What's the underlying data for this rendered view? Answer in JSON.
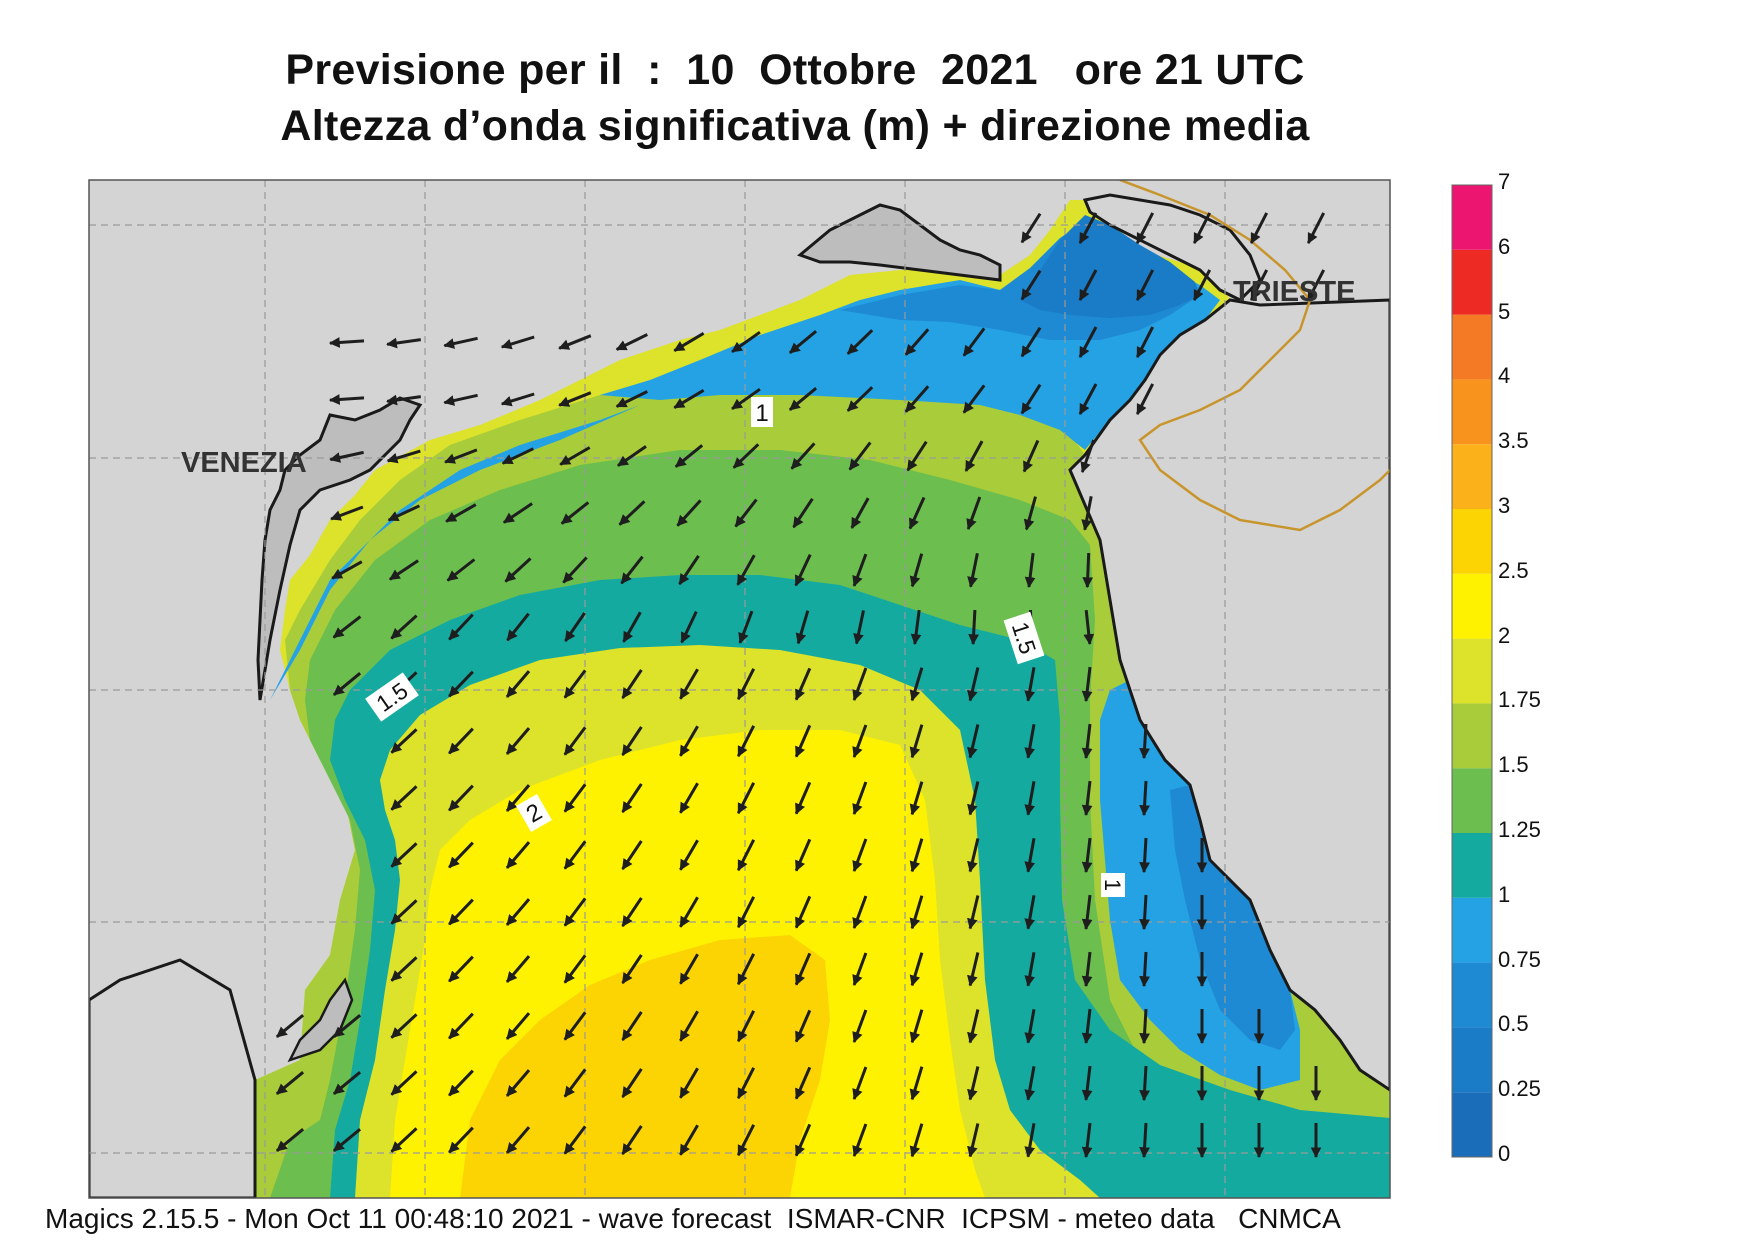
{
  "title": {
    "line1": "Previsione per il  :  10  Ottobre  2021   ore 21 UTC",
    "line2": "Altezza d’onda significativa (m) + direzione media"
  },
  "map": {
    "place_labels": [
      {
        "id": "venezia",
        "text": "VENEZIA"
      },
      {
        "id": "trieste",
        "text": "TRIESTE"
      }
    ],
    "contour_labels": [
      "1",
      "1.5",
      "1.5",
      "2",
      "1"
    ],
    "colors": {
      "land": "#d4d4d4",
      "coastline": "#1a1a1a",
      "border": "#c8952c",
      "grid": "#9a9a9a",
      "arrow": "#1e1e1e"
    }
  },
  "legend": {
    "unit": "m",
    "bands": [
      {
        "from": 0,
        "to": 0.25,
        "color": "#1a6db8"
      },
      {
        "from": 0.25,
        "to": 0.5,
        "color": "#1a7bc6"
      },
      {
        "from": 0.5,
        "to": 0.75,
        "color": "#1f8ad4"
      },
      {
        "from": 0.75,
        "to": 1,
        "color": "#24a2e4"
      },
      {
        "from": 1,
        "to": 1.25,
        "color": "#14aaa0"
      },
      {
        "from": 1.25,
        "to": 1.5,
        "color": "#6cbe4e"
      },
      {
        "from": 1.5,
        "to": 1.75,
        "color": "#a8cc3a"
      },
      {
        "from": 1.75,
        "to": 2,
        "color": "#dde22a"
      },
      {
        "from": 2,
        "to": 2.5,
        "color": "#fff200"
      },
      {
        "from": 2.5,
        "to": 3,
        "color": "#fcd404"
      },
      {
        "from": 3,
        "to": 3.5,
        "color": "#fbb21a"
      },
      {
        "from": 3.5,
        "to": 4,
        "color": "#f8931e"
      },
      {
        "from": 4,
        "to": 5,
        "color": "#f47a26"
      },
      {
        "from": 5,
        "to": 6,
        "color": "#ee2a24"
      },
      {
        "from": 6,
        "to": 7,
        "color": "#ec1670"
      }
    ],
    "tick_labels": [
      "0",
      "0.25",
      "0.5",
      "0.75",
      "1",
      "1.25",
      "1.5",
      "1.75",
      "2",
      "2.5",
      "3",
      "3.5",
      "4",
      "5",
      "6",
      "7"
    ]
  },
  "footer": "Magics 2.15.5 - Mon Oct 11 00:48:10 2021 - wave forecast  ISMAR-CNR  ICPSM - meteo data   CNMCA"
}
